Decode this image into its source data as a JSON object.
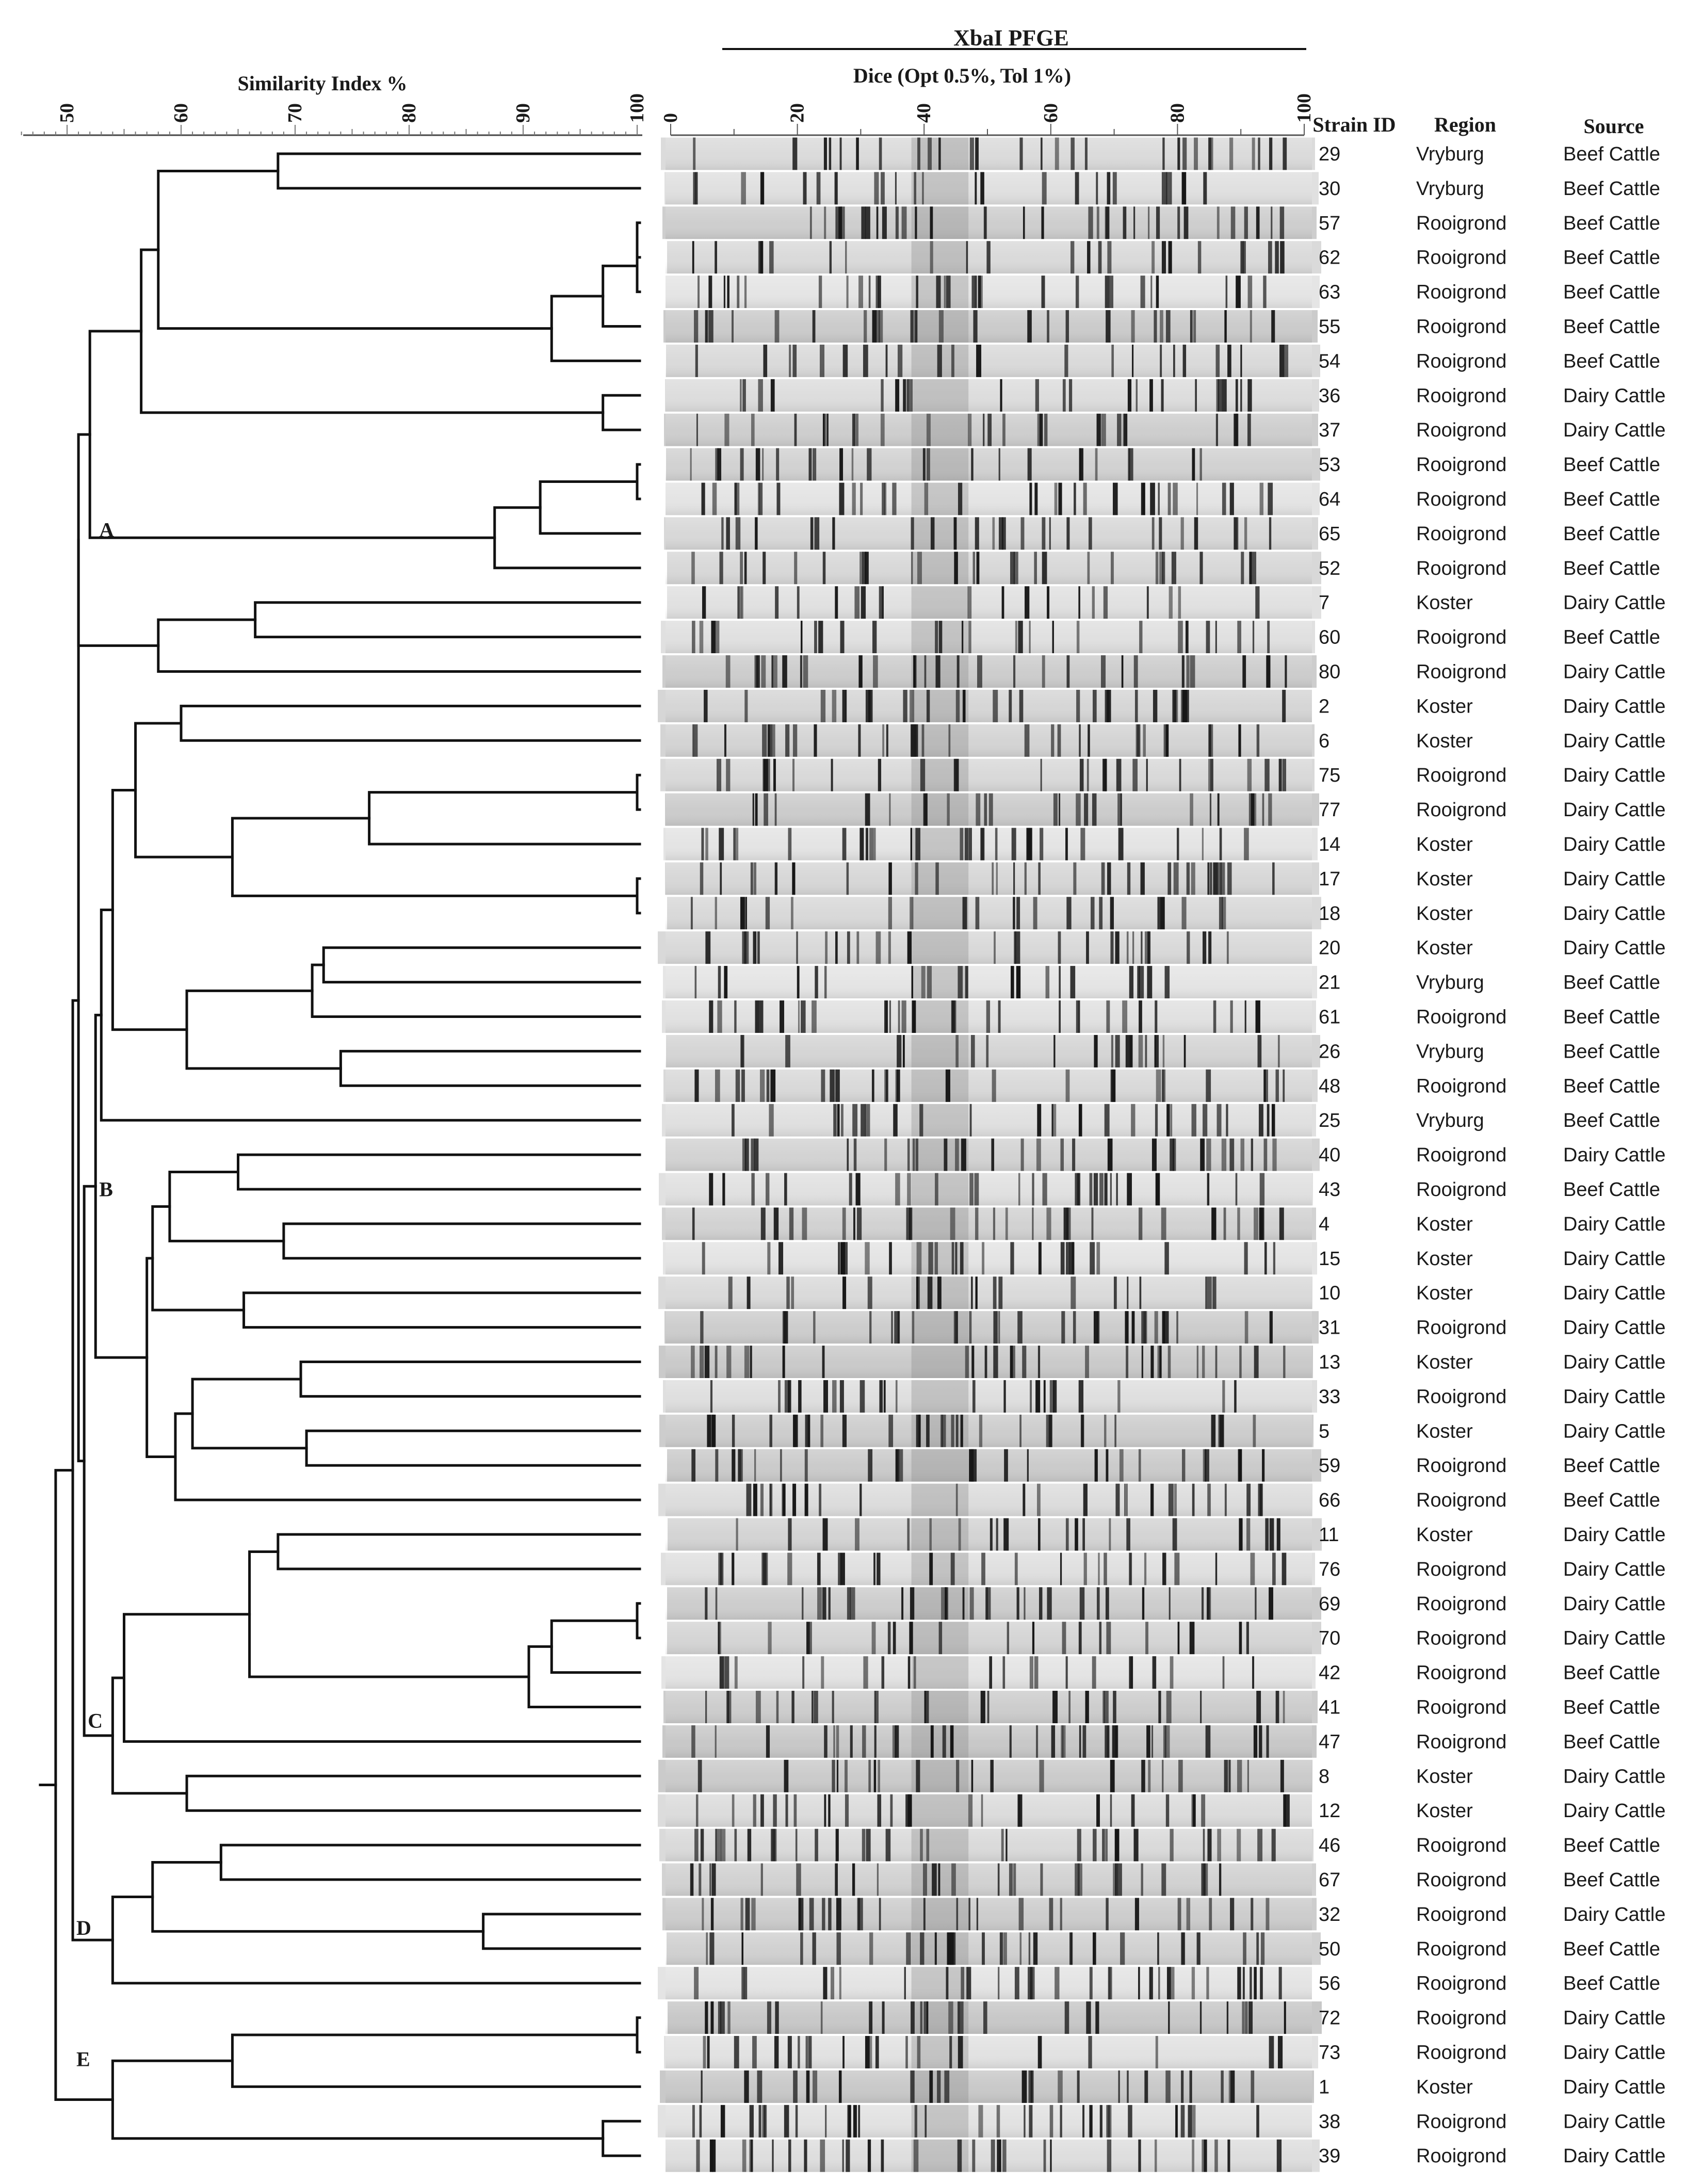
{
  "title": {
    "enzyme": "XbaI PFGE",
    "method": "Dice (Opt 0.5%, Tol 1%)",
    "similarity_axis": "Similarity Index %"
  },
  "similarity_ticks": [
    "50",
    "60",
    "70",
    "80",
    "90",
    "100"
  ],
  "gel_ticks": [
    "0",
    "20",
    "40",
    "60",
    "80",
    "100"
  ],
  "columns": {
    "strain": "Strain ID",
    "region": "Region",
    "source": "Source"
  },
  "clusters": [
    {
      "label": "A",
      "similarity": 52
    },
    {
      "label": "B",
      "similarity": 52
    },
    {
      "label": "C",
      "similarity": 51
    },
    {
      "label": "D",
      "similarity": 50
    },
    {
      "label": "E",
      "similarity": 50
    }
  ],
  "strains": [
    {
      "id": "29",
      "region": "Vryburg",
      "source": "Beef Cattle"
    },
    {
      "id": "30",
      "region": "Vryburg",
      "source": "Beef Cattle"
    },
    {
      "id": "57",
      "region": "Rooigrond",
      "source": "Beef Cattle"
    },
    {
      "id": "62",
      "region": "Rooigrond",
      "source": "Beef Cattle"
    },
    {
      "id": "63",
      "region": "Rooigrond",
      "source": "Beef Cattle"
    },
    {
      "id": "55",
      "region": "Rooigrond",
      "source": "Beef Cattle"
    },
    {
      "id": "54",
      "region": "Rooigrond",
      "source": "Beef Cattle"
    },
    {
      "id": "36",
      "region": "Rooigrond",
      "source": "Dairy Cattle"
    },
    {
      "id": "37",
      "region": "Rooigrond",
      "source": "Dairy Cattle"
    },
    {
      "id": "53",
      "region": "Rooigrond",
      "source": "Beef Cattle"
    },
    {
      "id": "64",
      "region": "Rooigrond",
      "source": "Beef Cattle"
    },
    {
      "id": "65",
      "region": "Rooigrond",
      "source": "Beef Cattle"
    },
    {
      "id": "52",
      "region": "Rooigrond",
      "source": "Beef Cattle"
    },
    {
      "id": "7",
      "region": "Koster",
      "source": "Dairy Cattle"
    },
    {
      "id": "60",
      "region": "Rooigrond",
      "source": "Beef Cattle"
    },
    {
      "id": "80",
      "region": "Rooigrond",
      "source": "Dairy Cattle"
    },
    {
      "id": "2",
      "region": "Koster",
      "source": "Dairy Cattle"
    },
    {
      "id": "6",
      "region": "Koster",
      "source": "Dairy Cattle"
    },
    {
      "id": "75",
      "region": "Rooigrond",
      "source": "Dairy Cattle"
    },
    {
      "id": "77",
      "region": "Rooigrond",
      "source": "Dairy Cattle"
    },
    {
      "id": "14",
      "region": "Koster",
      "source": "Dairy Cattle"
    },
    {
      "id": "17",
      "region": "Koster",
      "source": "Dairy Cattle"
    },
    {
      "id": "18",
      "region": "Koster",
      "source": "Dairy Cattle"
    },
    {
      "id": "20",
      "region": "Koster",
      "source": "Dairy Cattle"
    },
    {
      "id": "21",
      "region": "Vryburg",
      "source": "Beef Cattle"
    },
    {
      "id": "61",
      "region": "Rooigrond",
      "source": "Beef Cattle"
    },
    {
      "id": "26",
      "region": "Vryburg",
      "source": "Beef Cattle"
    },
    {
      "id": "48",
      "region": "Rooigrond",
      "source": "Beef Cattle"
    },
    {
      "id": "25",
      "region": "Vryburg",
      "source": "Beef Cattle"
    },
    {
      "id": "40",
      "region": "Rooigrond",
      "source": "Dairy Cattle"
    },
    {
      "id": "43",
      "region": "Rooigrond",
      "source": "Beef Cattle"
    },
    {
      "id": "4",
      "region": "Koster",
      "source": "Dairy Cattle"
    },
    {
      "id": "15",
      "region": "Koster",
      "source": "Dairy Cattle"
    },
    {
      "id": "10",
      "region": "Koster",
      "source": "Dairy Cattle"
    },
    {
      "id": "31",
      "region": "Rooigrond",
      "source": "Dairy Cattle"
    },
    {
      "id": "13",
      "region": "Koster",
      "source": "Dairy Cattle"
    },
    {
      "id": "33",
      "region": "Rooigrond",
      "source": "Dairy Cattle"
    },
    {
      "id": "5",
      "region": "Koster",
      "source": "Dairy Cattle"
    },
    {
      "id": "59",
      "region": "Rooigrond",
      "source": "Beef Cattle"
    },
    {
      "id": "66",
      "region": "Rooigrond",
      "source": "Beef Cattle"
    },
    {
      "id": "11",
      "region": "Koster",
      "source": "Dairy Cattle"
    },
    {
      "id": "76",
      "region": "Rooigrond",
      "source": "Dairy Cattle"
    },
    {
      "id": "69",
      "region": "Rooigrond",
      "source": "Dairy Cattle"
    },
    {
      "id": "70",
      "region": "Rooigrond",
      "source": "Dairy Cattle"
    },
    {
      "id": "42",
      "region": "Rooigrond",
      "source": "Beef Cattle"
    },
    {
      "id": "41",
      "region": "Rooigrond",
      "source": "Beef Cattle"
    },
    {
      "id": "47",
      "region": "Rooigrond",
      "source": "Beef Cattle"
    },
    {
      "id": "8",
      "region": "Koster",
      "source": "Dairy Cattle"
    },
    {
      "id": "12",
      "region": "Koster",
      "source": "Dairy Cattle"
    },
    {
      "id": "46",
      "region": "Rooigrond",
      "source": "Beef Cattle"
    },
    {
      "id": "67",
      "region": "Rooigrond",
      "source": "Beef Cattle"
    },
    {
      "id": "32",
      "region": "Rooigrond",
      "source": "Dairy Cattle"
    },
    {
      "id": "50",
      "region": "Rooigrond",
      "source": "Beef Cattle"
    },
    {
      "id": "56",
      "region": "Rooigrond",
      "source": "Beef Cattle"
    },
    {
      "id": "72",
      "region": "Rooigrond",
      "source": "Dairy Cattle"
    },
    {
      "id": "73",
      "region": "Rooigrond",
      "source": "Dairy Cattle"
    },
    {
      "id": "1",
      "region": "Koster",
      "source": "Dairy Cattle"
    },
    {
      "id": "38",
      "region": "Rooigrond",
      "source": "Dairy Cattle"
    },
    {
      "id": "39",
      "region": "Rooigrond",
      "source": "Dairy Cattle"
    }
  ],
  "colors": {
    "line": "#111111",
    "gel_background": "#d6d6d6",
    "band": "#161616",
    "text": "#1a1a1a"
  }
}
